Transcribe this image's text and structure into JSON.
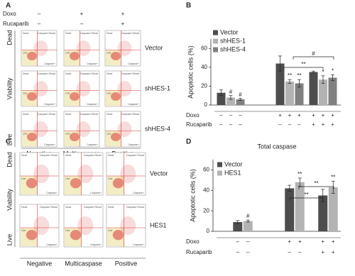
{
  "panel_labels": [
    "A",
    "B",
    "C",
    "D"
  ],
  "panel_a": {
    "conditions": [
      {
        "label": "Doxo",
        "signs": [
          "–",
          "+",
          "+"
        ]
      },
      {
        "label": "Rucaparib",
        "signs": [
          "–",
          "–",
          "+"
        ]
      }
    ],
    "row_labels": [
      "Vector",
      "shHES-1",
      "shHES-4"
    ],
    "y_labels": [
      "Dead",
      "Viability",
      "Live"
    ],
    "x_labels": [
      "Negative",
      "Multicaspase",
      "Positive"
    ],
    "quadrants": [
      "Dead",
      "Caspase+/Dead",
      "Live",
      "Caspase+"
    ]
  },
  "panel_c": {
    "row_labels": [
      "Vector",
      "HES1"
    ],
    "y_labels": [
      "Dead",
      "Viability",
      "Live"
    ],
    "x_labels": [
      "Negative",
      "Multicaspase",
      "Positive"
    ],
    "quadrants": [
      "Dead",
      "Caspase+/Dead",
      "Live",
      "Caspase+"
    ]
  },
  "chart_data": [
    {
      "type": "bar",
      "ylabel": "Apoptotic cells (%)",
      "categories": [
        null,
        null,
        null
      ],
      "series": [
        {
          "name": "Vector",
          "color": "#4d4d4d",
          "values": [
            13,
            44,
            35
          ],
          "errors": [
            3,
            8,
            1
          ],
          "sig": [
            null,
            null,
            null
          ]
        },
        {
          "name": "shHES-1",
          "color": "#b3b3b3",
          "values": [
            8,
            25,
            27
          ],
          "errors": [
            2,
            2,
            4
          ],
          "sig": [
            "#",
            "**",
            "*"
          ]
        },
        {
          "name": "shHES-4",
          "color": "#808080",
          "values": [
            6,
            23,
            29
          ],
          "errors": [
            1,
            4,
            3
          ],
          "sig": [
            "#",
            "**",
            "*"
          ]
        }
      ],
      "conditions": [
        {
          "label": "Doxo",
          "signs": [
            "–",
            "–",
            "–",
            "+",
            "+",
            "+",
            "+",
            "+",
            "+"
          ]
        },
        {
          "label": "Rucaparib",
          "signs": [
            "–",
            "–",
            "–",
            "–",
            "–",
            "–",
            "+",
            "+",
            "+"
          ]
        }
      ],
      "brackets": [
        "**",
        "#"
      ],
      "ylim": [
        0,
        70
      ],
      "yticks": [
        0,
        20,
        40,
        60
      ],
      "legend": "upper left"
    },
    {
      "type": "bar",
      "title": "Total caspase",
      "ylabel": "Apoptotic cells (%)",
      "categories": [
        null,
        null,
        null
      ],
      "series": [
        {
          "name": "Vector",
          "color": "#4d4d4d",
          "values": [
            9,
            42,
            35
          ],
          "errors": [
            1.5,
            3,
            6
          ],
          "sig": [
            null,
            null,
            null
          ]
        },
        {
          "name": "HES1",
          "color": "#b3b3b3",
          "values": [
            10,
            48,
            43
          ],
          "errors": [
            1,
            4,
            6
          ],
          "sig": [
            "#",
            "**",
            "**"
          ]
        }
      ],
      "conditions": [
        {
          "label": "Doxo",
          "signs": [
            "–",
            "–",
            "+",
            "+",
            "+",
            "+"
          ]
        },
        {
          "label": "Rucaparib",
          "signs": [
            "–",
            "–",
            "–",
            "–",
            "+",
            "+"
          ]
        }
      ],
      "brackets": [
        "**",
        "**"
      ],
      "ylim": [
        0,
        70
      ],
      "yticks": [
        0,
        20,
        40,
        60
      ],
      "legend": "upper left"
    }
  ]
}
